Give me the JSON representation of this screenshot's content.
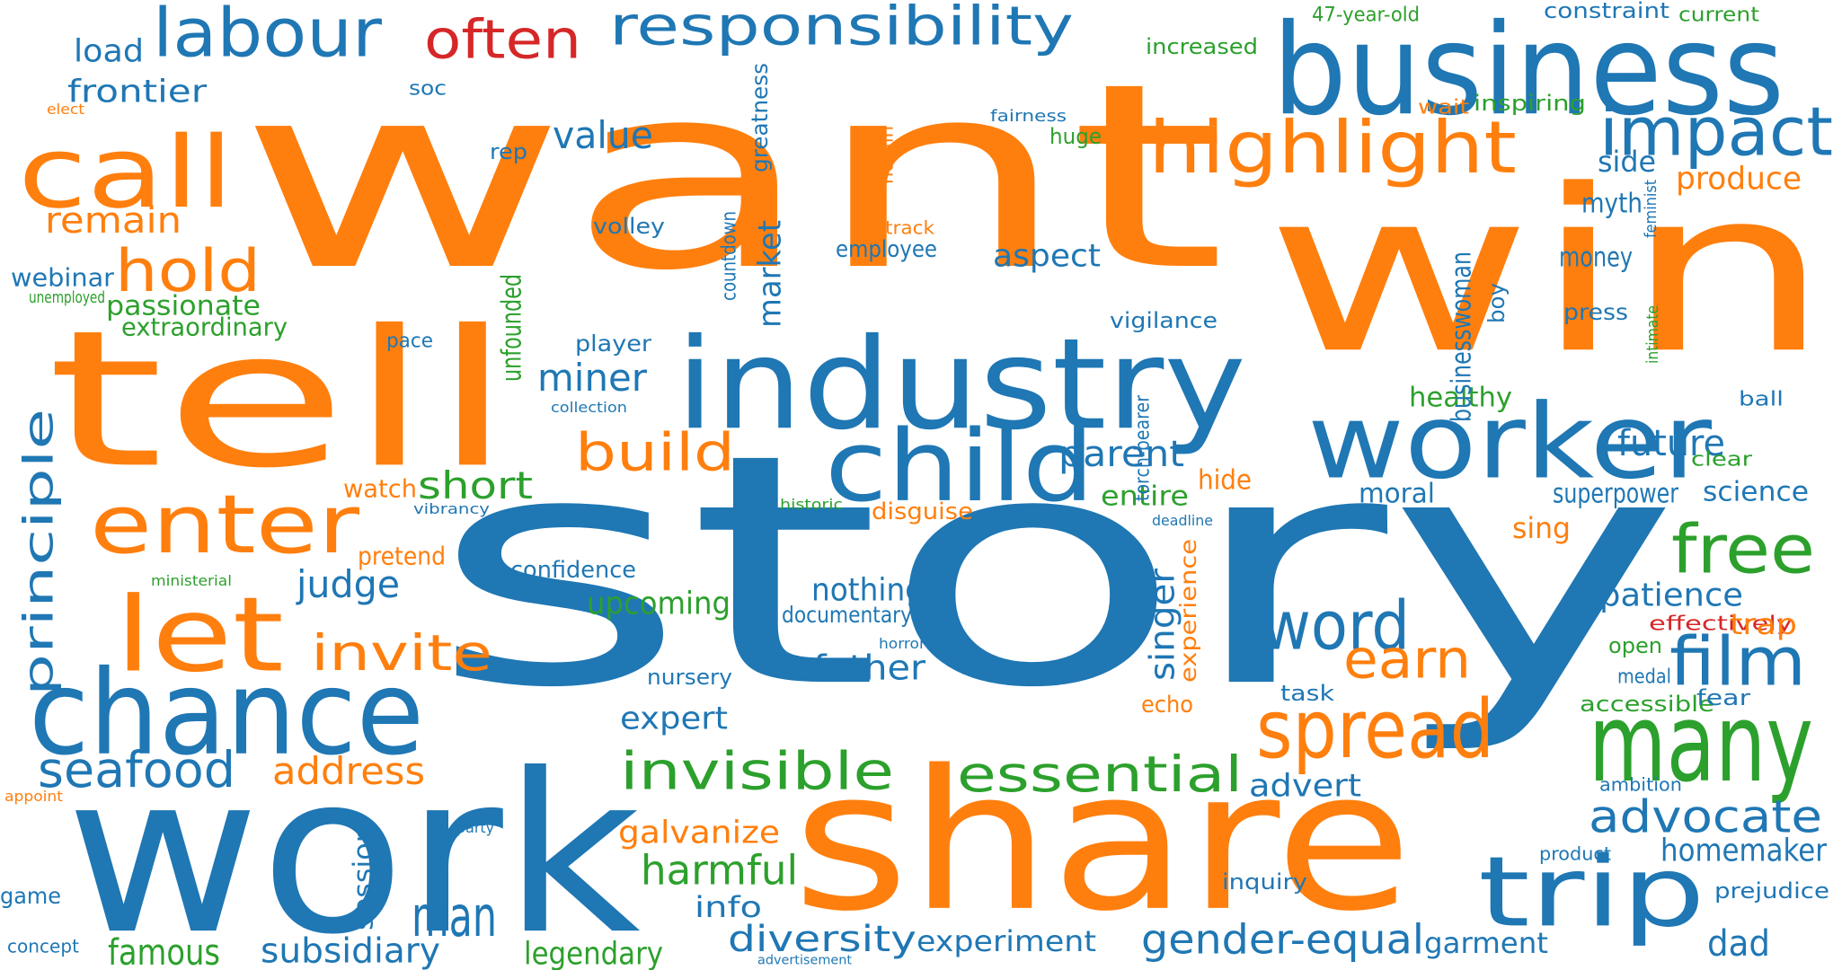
{
  "colors": {
    "blue": "#1f77b4",
    "orange": "#ff7f0e",
    "green": "#2ca02c",
    "red": "#d62728"
  },
  "words": [
    {
      "text": "story",
      "color": "blue"
    },
    {
      "text": "want",
      "color": "orange"
    },
    {
      "text": "win",
      "color": "orange"
    },
    {
      "text": "work",
      "color": "blue"
    },
    {
      "text": "tell",
      "color": "orange"
    },
    {
      "text": "share",
      "color": "orange"
    },
    {
      "text": "business",
      "color": "blue"
    },
    {
      "text": "industry",
      "color": "blue"
    },
    {
      "text": "worker",
      "color": "blue"
    },
    {
      "text": "chance",
      "color": "blue"
    },
    {
      "text": "child",
      "color": "blue"
    },
    {
      "text": "many",
      "color": "green"
    },
    {
      "text": "call",
      "color": "orange"
    },
    {
      "text": "labour",
      "color": "blue"
    },
    {
      "text": "enter",
      "color": "orange"
    },
    {
      "text": "let",
      "color": "orange"
    },
    {
      "text": "trip",
      "color": "blue"
    },
    {
      "text": "spread",
      "color": "orange"
    },
    {
      "text": "highlight",
      "color": "orange"
    },
    {
      "text": "impact",
      "color": "blue"
    },
    {
      "text": "film",
      "color": "blue"
    },
    {
      "text": "word",
      "color": "blue"
    },
    {
      "text": "free",
      "color": "green"
    },
    {
      "text": "responsibility",
      "color": "blue"
    },
    {
      "text": "often",
      "color": "red"
    },
    {
      "text": "man",
      "color": "blue"
    },
    {
      "text": "hold",
      "color": "orange"
    },
    {
      "text": "essential",
      "color": "green"
    },
    {
      "text": "invisible",
      "color": "green"
    },
    {
      "text": "principle",
      "color": "blue"
    },
    {
      "text": "earn",
      "color": "orange"
    },
    {
      "text": "build",
      "color": "orange"
    },
    {
      "text": "invite",
      "color": "orange"
    },
    {
      "text": "advocate",
      "color": "blue"
    },
    {
      "text": "seafood",
      "color": "blue"
    },
    {
      "text": "remain",
      "color": "orange"
    },
    {
      "text": "value",
      "color": "blue"
    },
    {
      "text": "miner",
      "color": "blue"
    },
    {
      "text": "gender-equal",
      "color": "blue"
    },
    {
      "text": "diversity",
      "color": "blue"
    },
    {
      "text": "harmful",
      "color": "green"
    },
    {
      "text": "address",
      "color": "orange"
    },
    {
      "text": "judge",
      "color": "blue"
    },
    {
      "text": "short",
      "color": "green"
    },
    {
      "text": "famous",
      "color": "green"
    },
    {
      "text": "subsidiary",
      "color": "blue"
    },
    {
      "text": "legendary",
      "color": "green"
    },
    {
      "text": "frontier",
      "color": "blue"
    },
    {
      "text": "load",
      "color": "blue"
    },
    {
      "text": "parent",
      "color": "blue"
    },
    {
      "text": "father",
      "color": "blue"
    },
    {
      "text": "singer",
      "color": "blue"
    },
    {
      "text": "nothing",
      "color": "blue"
    },
    {
      "text": "upcoming",
      "color": "green"
    },
    {
      "text": "dad",
      "color": "blue"
    },
    {
      "text": "galvanize",
      "color": "orange"
    },
    {
      "text": "future",
      "color": "blue"
    },
    {
      "text": "patience",
      "color": "blue"
    },
    {
      "text": "homemaker",
      "color": "blue"
    },
    {
      "text": "experiment",
      "color": "blue"
    },
    {
      "text": "garment",
      "color": "blue"
    },
    {
      "text": "market",
      "color": "blue"
    },
    {
      "text": "aspect",
      "color": "blue"
    },
    {
      "text": "expert",
      "color": "blue"
    },
    {
      "text": "advert",
      "color": "blue"
    },
    {
      "text": "info",
      "color": "blue"
    },
    {
      "text": "session",
      "color": "blue"
    },
    {
      "text": "produce",
      "color": "orange"
    },
    {
      "text": "side",
      "color": "blue"
    },
    {
      "text": "myth",
      "color": "blue"
    },
    {
      "text": "money",
      "color": "blue"
    },
    {
      "text": "passionate",
      "color": "green"
    },
    {
      "text": "extraordinary",
      "color": "green"
    },
    {
      "text": "webinar",
      "color": "blue"
    },
    {
      "text": "healthy",
      "color": "green"
    },
    {
      "text": "businesswoman",
      "color": "blue"
    },
    {
      "text": "entire",
      "color": "green"
    },
    {
      "text": "hide",
      "color": "orange"
    },
    {
      "text": "moral",
      "color": "blue"
    },
    {
      "text": "science",
      "color": "blue"
    },
    {
      "text": "superpower",
      "color": "blue"
    },
    {
      "text": "sing",
      "color": "orange"
    },
    {
      "text": "experience",
      "color": "orange"
    },
    {
      "text": "employee",
      "color": "blue"
    },
    {
      "text": "confidence",
      "color": "blue"
    },
    {
      "text": "documentary",
      "color": "blue"
    },
    {
      "text": "disguise",
      "color": "orange"
    },
    {
      "text": "watch",
      "color": "orange"
    },
    {
      "text": "pretend",
      "color": "orange"
    },
    {
      "text": "player",
      "color": "blue"
    },
    {
      "text": "unfounded",
      "color": "green"
    },
    {
      "text": "vigilance",
      "color": "blue"
    },
    {
      "text": "volley",
      "color": "blue"
    },
    {
      "text": "greatness",
      "color": "blue"
    },
    {
      "text": "countdown",
      "color": "blue"
    },
    {
      "text": "increased",
      "color": "green"
    },
    {
      "text": "47-year-old",
      "color": "green"
    },
    {
      "text": "constraint",
      "color": "blue"
    },
    {
      "text": "current",
      "color": "green"
    },
    {
      "text": "inspiring",
      "color": "green"
    },
    {
      "text": "wait",
      "color": "orange"
    },
    {
      "text": "huge",
      "color": "green"
    },
    {
      "text": "fairness",
      "color": "blue"
    },
    {
      "text": "holdin",
      "color": "orange"
    },
    {
      "text": "track",
      "color": "orange"
    },
    {
      "text": "press",
      "color": "blue"
    },
    {
      "text": "boy",
      "color": "blue"
    },
    {
      "text": "intimate",
      "color": "green"
    },
    {
      "text": "feminist",
      "color": "blue"
    },
    {
      "text": "ball",
      "color": "blue"
    },
    {
      "text": "clear",
      "color": "green"
    },
    {
      "text": "soc",
      "color": "blue"
    },
    {
      "text": "rep",
      "color": "blue"
    },
    {
      "text": "elect",
      "color": "orange"
    },
    {
      "text": "unemployed",
      "color": "green"
    },
    {
      "text": "pace",
      "color": "blue"
    },
    {
      "text": "collection",
      "color": "blue"
    },
    {
      "text": "torch-bearer",
      "color": "blue"
    },
    {
      "text": "vibrancy",
      "color": "blue"
    },
    {
      "text": "historic",
      "color": "green"
    },
    {
      "text": "deadline",
      "color": "blue"
    },
    {
      "text": "ministerial",
      "color": "green"
    },
    {
      "text": "horror",
      "color": "blue"
    },
    {
      "text": "nursery",
      "color": "blue"
    },
    {
      "text": "effectively",
      "color": "red"
    },
    {
      "text": "trap",
      "color": "orange"
    },
    {
      "text": "open",
      "color": "green"
    },
    {
      "text": "medal",
      "color": "blue"
    },
    {
      "text": "accessible",
      "color": "green"
    },
    {
      "text": "fear",
      "color": "blue"
    },
    {
      "text": "ambition",
      "color": "blue"
    },
    {
      "text": "product",
      "color": "blue"
    },
    {
      "text": "prejudice",
      "color": "blue"
    },
    {
      "text": "echo",
      "color": "orange"
    },
    {
      "text": "task",
      "color": "blue"
    },
    {
      "text": "inquiry",
      "color": "blue"
    },
    {
      "text": "party",
      "color": "blue"
    },
    {
      "text": "appoint",
      "color": "orange"
    },
    {
      "text": "game",
      "color": "blue"
    },
    {
      "text": "concept",
      "color": "blue"
    },
    {
      "text": "advertisement",
      "color": "blue"
    }
  ]
}
